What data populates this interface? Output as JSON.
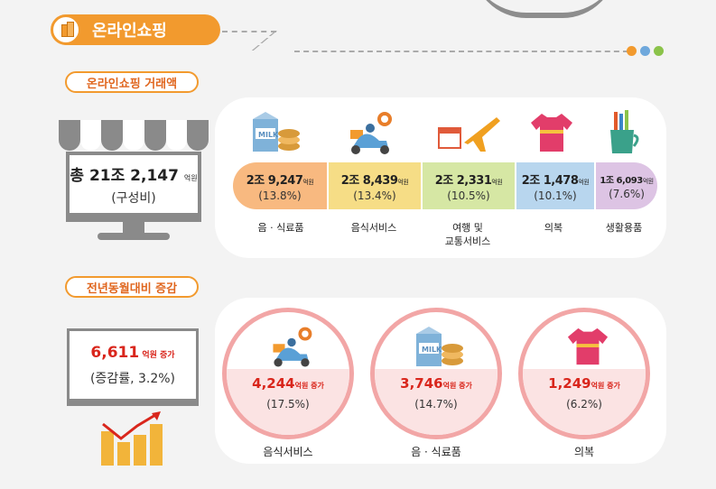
{
  "title": "온라인쇼핑",
  "colors": {
    "accent": "#f29a2e",
    "red": "#d9261c",
    "dots": [
      "#f29a2e",
      "#6fa8dc",
      "#8bc34a"
    ]
  },
  "section1": {
    "label": "온라인쇼핑 거래액",
    "total_value": "총 21조 2,147",
    "total_unit": "억원",
    "total_sub": "(구성비)",
    "segments": [
      {
        "value": "2조 9,247",
        "unit": "억원",
        "pct": "(13.8%)",
        "label": "음 · 식료품",
        "icon": "milk-food-icon",
        "color": "#f8b980"
      },
      {
        "value": "2조 8,439",
        "unit": "억원",
        "pct": "(13.4%)",
        "label": "음식서비스",
        "icon": "delivery-scooter-icon",
        "color": "#f6dd86"
      },
      {
        "value": "2조 2,331",
        "unit": "억원",
        "pct": "(10.5%)",
        "label": "여행 및",
        "label2": "교통서비스",
        "icon": "airplane-calendar-icon",
        "color": "#d6e7a4"
      },
      {
        "value": "2조 1,478",
        "unit": "억원",
        "pct": "(10.1%)",
        "label": "의복",
        "icon": "tshirt-icon",
        "color": "#b8d6ee"
      },
      {
        "value": "1조 6,093",
        "unit": "억원",
        "pct": "(7.6%)",
        "label": "생활용품",
        "icon": "household-cup-icon",
        "color": "#ddc4e4"
      }
    ]
  },
  "section2": {
    "label": "전년동월대비 증감",
    "total_value": "6,611",
    "total_unit": "억원 증가",
    "total_sub": "(증감률, 3.2%)",
    "items": [
      {
        "value": "4,244",
        "unit": "억원 증가",
        "pct": "(17.5%)",
        "label": "음식서비스",
        "icon": "delivery-scooter-icon"
      },
      {
        "value": "3,746",
        "unit": "억원 증가",
        "pct": "(14.7%)",
        "label": "음 · 식료품",
        "icon": "milk-food-icon"
      },
      {
        "value": "1,249",
        "unit": "억원 증가",
        "pct": "(6.2%)",
        "label": "의복",
        "icon": "tshirt-icon"
      }
    ]
  }
}
